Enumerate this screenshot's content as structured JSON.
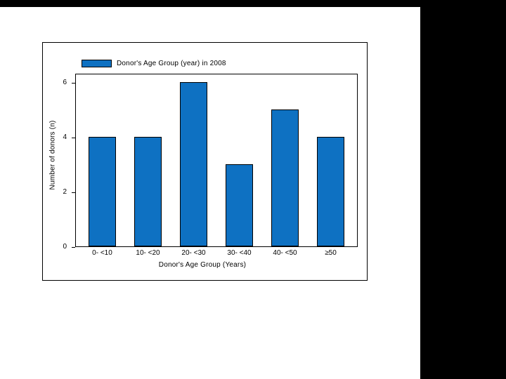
{
  "background": {
    "frame_color": "#000000",
    "canvas_color": "#ffffff"
  },
  "chart_data": {
    "type": "bar",
    "title": "",
    "legend": {
      "label": "Donor's Age Group (year) in 2008",
      "position": "top-left"
    },
    "categories": [
      "0- <10",
      "10- <20",
      "20- <30",
      "30- <40",
      "40- <50",
      "≥50"
    ],
    "values": [
      4,
      4,
      6,
      3,
      5,
      4
    ],
    "xlabel": "Donor's Age Group (Years)",
    "ylabel": "Number of donors (n)",
    "yticks": [
      0,
      2,
      4,
      6
    ],
    "ylim": [
      0,
      6.3
    ],
    "bar_color": "#0E71C2",
    "bar_border_color": "#000000",
    "axis_color": "#000000",
    "grid": false
  }
}
